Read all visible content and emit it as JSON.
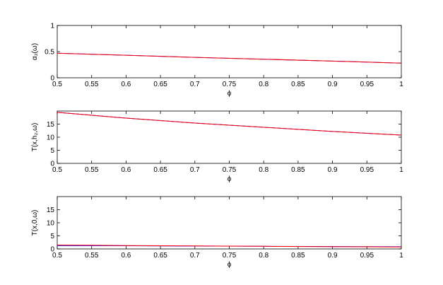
{
  "chart_data": [
    {
      "type": "line",
      "ylabel": "α₂(ω)",
      "xlabel": "ϕ",
      "x": [
        0.5,
        0.6,
        0.7,
        0.8,
        0.9,
        1
      ],
      "series": [
        {
          "color": "#0000ff",
          "values": [
            0.47,
            0.43,
            0.39,
            0.355,
            0.32,
            0.28
          ]
        },
        {
          "color": "#ff0000",
          "values": [
            0.47,
            0.43,
            0.39,
            0.355,
            0.32,
            0.28
          ]
        }
      ],
      "xlim": [
        0.5,
        1
      ],
      "ylim": [
        0,
        1
      ],
      "xticks": [
        0.5,
        0.55,
        0.6,
        0.65,
        0.7,
        0.75,
        0.8,
        0.85,
        0.9,
        0.95,
        1
      ],
      "yticks": [
        0,
        0.5,
        1
      ]
    },
    {
      "type": "line",
      "ylabel": "T(x,h₂,ω)",
      "xlabel": "ϕ",
      "x": [
        0.5,
        0.6,
        0.7,
        0.8,
        0.9,
        1
      ],
      "series": [
        {
          "color": "#0000ff",
          "values": [
            19.5,
            17.3,
            15.4,
            13.8,
            12.2,
            10.8
          ]
        },
        {
          "color": "#ff0000",
          "values": [
            19.5,
            17.3,
            15.4,
            13.8,
            12.2,
            10.8
          ]
        }
      ],
      "xlim": [
        0.5,
        1
      ],
      "ylim": [
        0,
        20
      ],
      "xticks": [
        0.5,
        0.55,
        0.6,
        0.65,
        0.7,
        0.75,
        0.8,
        0.85,
        0.9,
        0.95,
        1
      ],
      "yticks": [
        0,
        5,
        10,
        15
      ]
    },
    {
      "type": "line",
      "ylabel": "T(x,0,ω)",
      "xlabel": "ϕ",
      "x": [
        0.5,
        0.6,
        0.7,
        0.8,
        0.9,
        1
      ],
      "series": [
        {
          "color": "#0000ff",
          "values": [
            1.3,
            1.2,
            1.1,
            1.0,
            0.9,
            0.85
          ]
        },
        {
          "color": "#ff0000",
          "values": [
            1.5,
            1.3,
            1.15,
            1.0,
            0.85,
            0.75
          ]
        }
      ],
      "xlim": [
        0.5,
        1
      ],
      "ylim": [
        0,
        20
      ],
      "xticks": [
        0.5,
        0.55,
        0.6,
        0.65,
        0.7,
        0.75,
        0.8,
        0.85,
        0.9,
        0.95,
        1
      ],
      "yticks": [
        0,
        5,
        10,
        15
      ]
    }
  ]
}
